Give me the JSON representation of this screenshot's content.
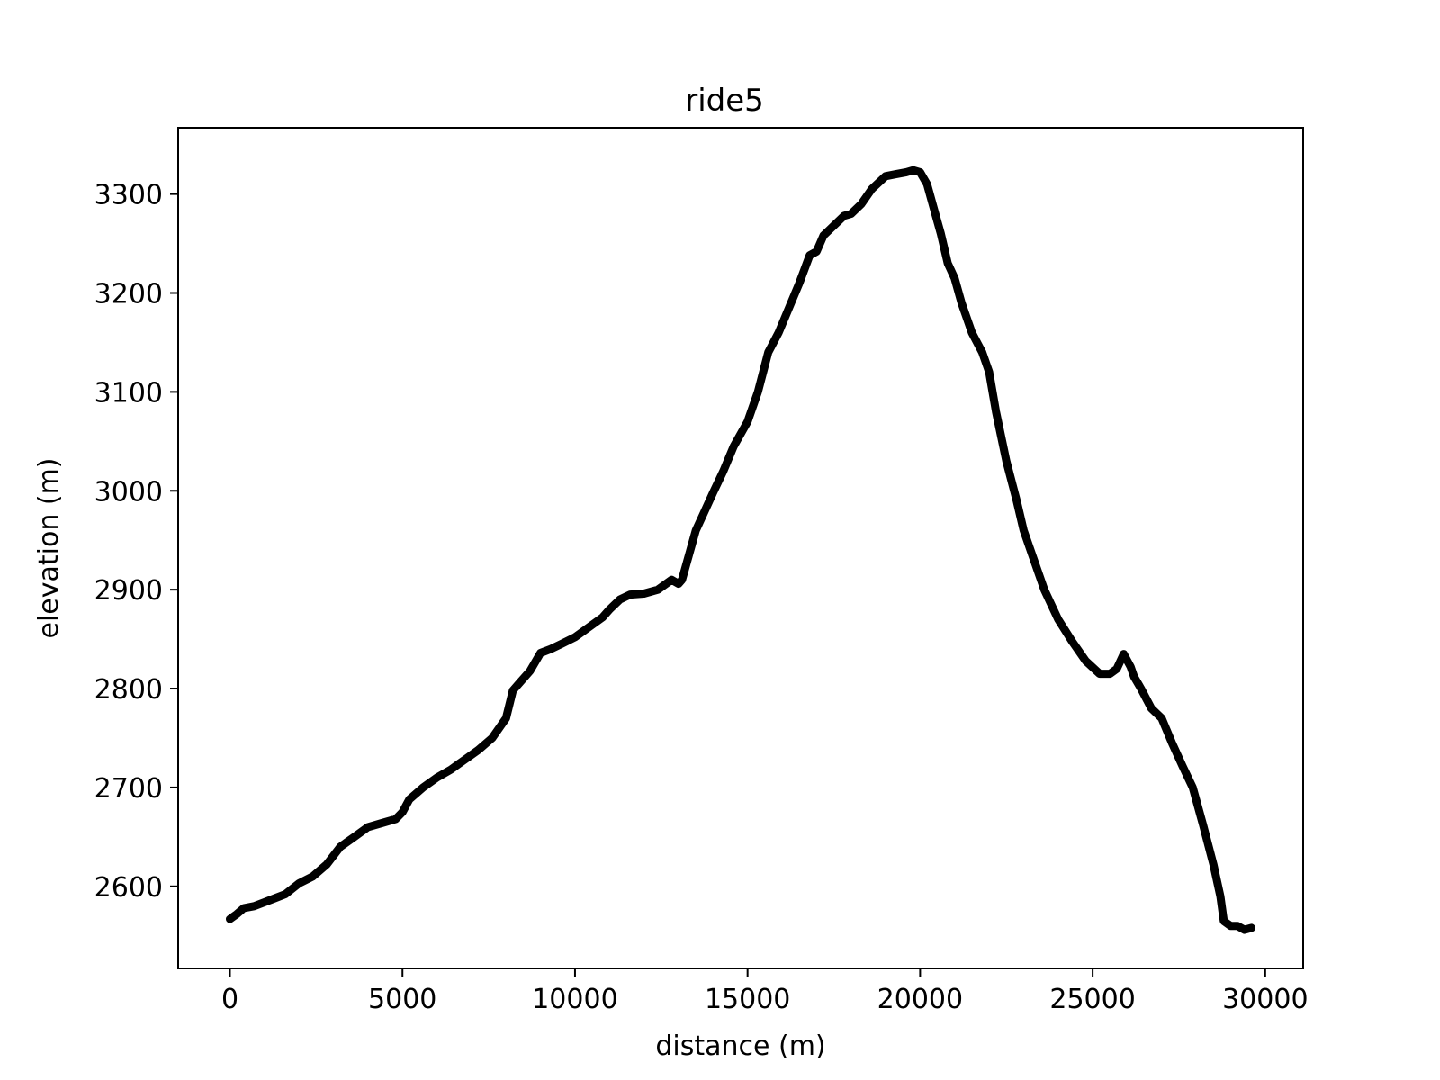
{
  "chart_data": {
    "type": "line",
    "title": "ride5",
    "xlabel": "distance (m)",
    "ylabel": "elevation (m)",
    "xlim": [
      -1500,
      31100
    ],
    "ylim": [
      2517,
      3367
    ],
    "xticks": [
      0,
      5000,
      10000,
      15000,
      20000,
      25000,
      30000
    ],
    "yticks": [
      2600,
      2700,
      2800,
      2900,
      3000,
      3100,
      3200,
      3300
    ],
    "grid": false,
    "legend": "none",
    "colors": {
      "line": "#000000",
      "axes": "#000000",
      "background": "#ffffff"
    },
    "series": [
      {
        "x": [
          0,
          200,
          400,
          700,
          1000,
          1300,
          1600,
          2000,
          2400,
          2800,
          3200,
          3600,
          4000,
          4400,
          4800,
          5000,
          5200,
          5600,
          6000,
          6400,
          6800,
          7200,
          7600,
          8000,
          8200,
          8400,
          8700,
          9000,
          9300,
          9600,
          10000,
          10400,
          10800,
          11000,
          11300,
          11600,
          12000,
          12400,
          12800,
          13000,
          13100,
          13300,
          13500,
          13700,
          14000,
          14300,
          14600,
          15000,
          15300,
          15600,
          15900,
          16200,
          16500,
          16800,
          17000,
          17200,
          17500,
          17800,
          18000,
          18300,
          18600,
          19000,
          19300,
          19600,
          19800,
          20000,
          20200,
          20400,
          20600,
          20800,
          21000,
          21200,
          21500,
          21800,
          22000,
          22200,
          22500,
          22800,
          23000,
          23300,
          23600,
          24000,
          24400,
          24800,
          25200,
          25500,
          25700,
          25900,
          26100,
          26200,
          26400,
          26700,
          27000,
          27300,
          27600,
          27900,
          28200,
          28500,
          28700,
          28800,
          29000,
          29200,
          29400,
          29600
        ],
        "y": [
          2567,
          2572,
          2578,
          2580,
          2584,
          2588,
          2592,
          2603,
          2610,
          2622,
          2640,
          2650,
          2660,
          2664,
          2668,
          2675,
          2688,
          2700,
          2710,
          2718,
          2728,
          2738,
          2750,
          2770,
          2798,
          2806,
          2818,
          2836,
          2840,
          2845,
          2852,
          2862,
          2872,
          2880,
          2890,
          2895,
          2896,
          2900,
          2910,
          2906,
          2910,
          2935,
          2960,
          2975,
          2998,
          3020,
          3045,
          3070,
          3100,
          3140,
          3160,
          3185,
          3210,
          3238,
          3242,
          3258,
          3268,
          3278,
          3280,
          3290,
          3305,
          3318,
          3320,
          3322,
          3324,
          3322,
          3310,
          3285,
          3260,
          3230,
          3215,
          3190,
          3160,
          3140,
          3120,
          3080,
          3030,
          2990,
          2960,
          2930,
          2900,
          2870,
          2848,
          2828,
          2815,
          2815,
          2820,
          2835,
          2822,
          2812,
          2800,
          2780,
          2770,
          2745,
          2722,
          2700,
          2662,
          2622,
          2590,
          2565,
          2560,
          2560,
          2556,
          2558
        ]
      }
    ]
  }
}
